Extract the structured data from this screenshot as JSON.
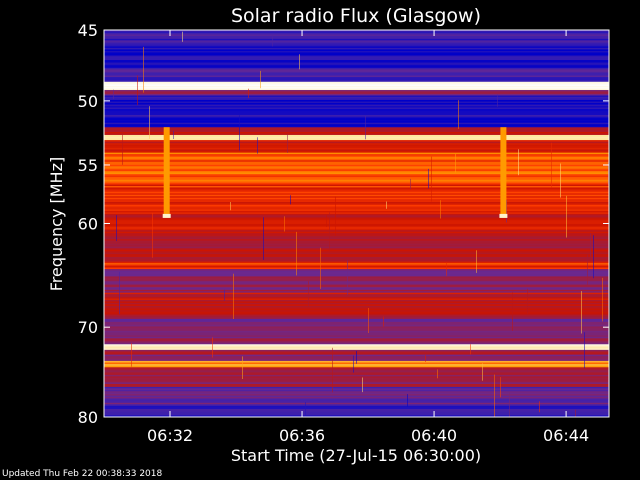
{
  "chart_data": {
    "type": "heatmap",
    "title": "Solar radio Flux (Glasgow)",
    "xlabel": "Start Time (27-Jul-15 06:30:00)",
    "ylabel": "Frequency [MHz]",
    "x_unit": "minutes after 06:30",
    "xlim": [
      0,
      15.3
    ],
    "ylim": [
      45,
      80
    ],
    "y_log_scale": true,
    "x_ticks": [
      {
        "value": 2,
        "label": "06:32"
      },
      {
        "value": 6,
        "label": "06:36"
      },
      {
        "value": 10,
        "label": "06:40"
      },
      {
        "value": 14,
        "label": "06:44"
      }
    ],
    "y_ticks": [
      {
        "value": 45,
        "label": "45"
      },
      {
        "value": 50,
        "label": "50"
      },
      {
        "value": 55,
        "label": "55"
      },
      {
        "value": 60,
        "label": "60"
      },
      {
        "value": 70,
        "label": "70"
      },
      {
        "value": 80,
        "label": "80"
      }
    ],
    "colormap": [
      "#0000c8",
      "#3a1fb0",
      "#6a2890",
      "#a01c3c",
      "#cc1400",
      "#ff3c00",
      "#ff9a00",
      "#ffe080",
      "#ffffff"
    ],
    "frequency_profile": [
      {
        "f1": 45.0,
        "f2": 45.9,
        "level": 0.12
      },
      {
        "f1": 45.9,
        "f2": 47.6,
        "level": 0.05
      },
      {
        "f1": 47.6,
        "f2": 48.6,
        "level": 0.15
      },
      {
        "f1": 48.6,
        "f2": 49.2,
        "level": 0.98
      },
      {
        "f1": 49.2,
        "f2": 49.6,
        "level": 0.3
      },
      {
        "f1": 49.6,
        "f2": 52.0,
        "level": 0.06
      },
      {
        "f1": 52.0,
        "f2": 52.6,
        "level": 0.45
      },
      {
        "f1": 52.6,
        "f2": 53.0,
        "level": 0.9
      },
      {
        "f1": 53.0,
        "f2": 54.0,
        "level": 0.52
      },
      {
        "f1": 54.0,
        "f2": 56.5,
        "level": 0.65
      },
      {
        "f1": 56.5,
        "f2": 58.5,
        "level": 0.58
      },
      {
        "f1": 58.5,
        "f2": 61.0,
        "level": 0.5
      },
      {
        "f1": 61.0,
        "f2": 63.5,
        "level": 0.42
      },
      {
        "f1": 63.5,
        "f2": 64.2,
        "level": 0.6
      },
      {
        "f1": 64.2,
        "f2": 66.5,
        "level": 0.32
      },
      {
        "f1": 66.5,
        "f2": 69.0,
        "level": 0.45
      },
      {
        "f1": 69.0,
        "f2": 71.8,
        "level": 0.3
      },
      {
        "f1": 71.8,
        "f2": 72.4,
        "level": 0.95
      },
      {
        "f1": 72.4,
        "f2": 73.6,
        "level": 0.35
      },
      {
        "f1": 73.6,
        "f2": 74.3,
        "level": 0.72
      },
      {
        "f1": 74.3,
        "f2": 76.5,
        "level": 0.35
      },
      {
        "f1": 76.5,
        "f2": 78.5,
        "level": 0.22
      },
      {
        "f1": 78.5,
        "f2": 80.0,
        "level": 0.1
      }
    ],
    "time_bursts": [
      {
        "t": 1.9,
        "f1": 52.0,
        "f2": 59.5,
        "level": 0.75
      },
      {
        "t": 12.1,
        "f1": 52.0,
        "f2": 59.5,
        "level": 0.75
      }
    ]
  },
  "footer": "Updated Thu Feb 22 00:38:33 2018"
}
